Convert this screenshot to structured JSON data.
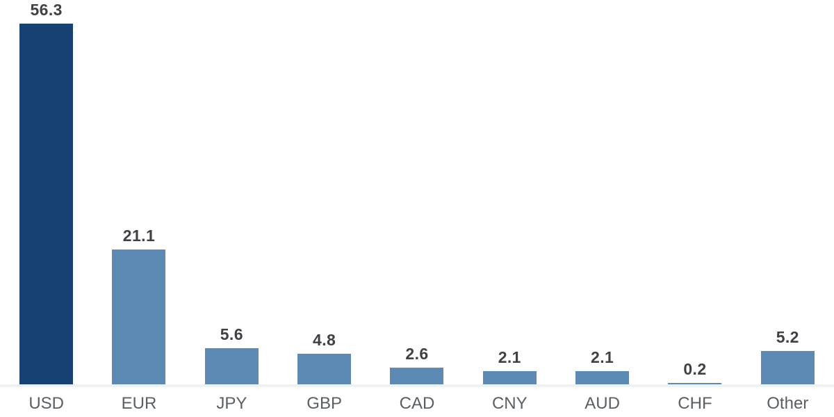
{
  "chart_data": {
    "type": "bar",
    "title": "",
    "xlabel": "",
    "ylabel": "",
    "categories": [
      "USD",
      "EUR",
      "JPY",
      "GBP",
      "CAD",
      "CNY",
      "AUD",
      "CHF",
      "Other"
    ],
    "values": [
      56.3,
      21.1,
      5.6,
      4.8,
      2.6,
      2.1,
      2.1,
      0.2,
      5.2
    ],
    "value_labels": [
      "56.3",
      "21.1",
      "5.6",
      "4.8",
      "2.6",
      "2.1",
      "2.1",
      "0.2",
      "5.2"
    ],
    "ylim": [
      0,
      60
    ],
    "grid": false,
    "legend": false,
    "data_labels_shown": true,
    "axis_ticks_shown": false,
    "highlight_index": 0,
    "colors": {
      "highlight_bar": "#174073",
      "default_bar": "#5c8ab4",
      "value_label": "#3e4145",
      "category_label": "#5a5f64",
      "axis_line": "#f0f1f3",
      "background": "#ffffff"
    }
  }
}
